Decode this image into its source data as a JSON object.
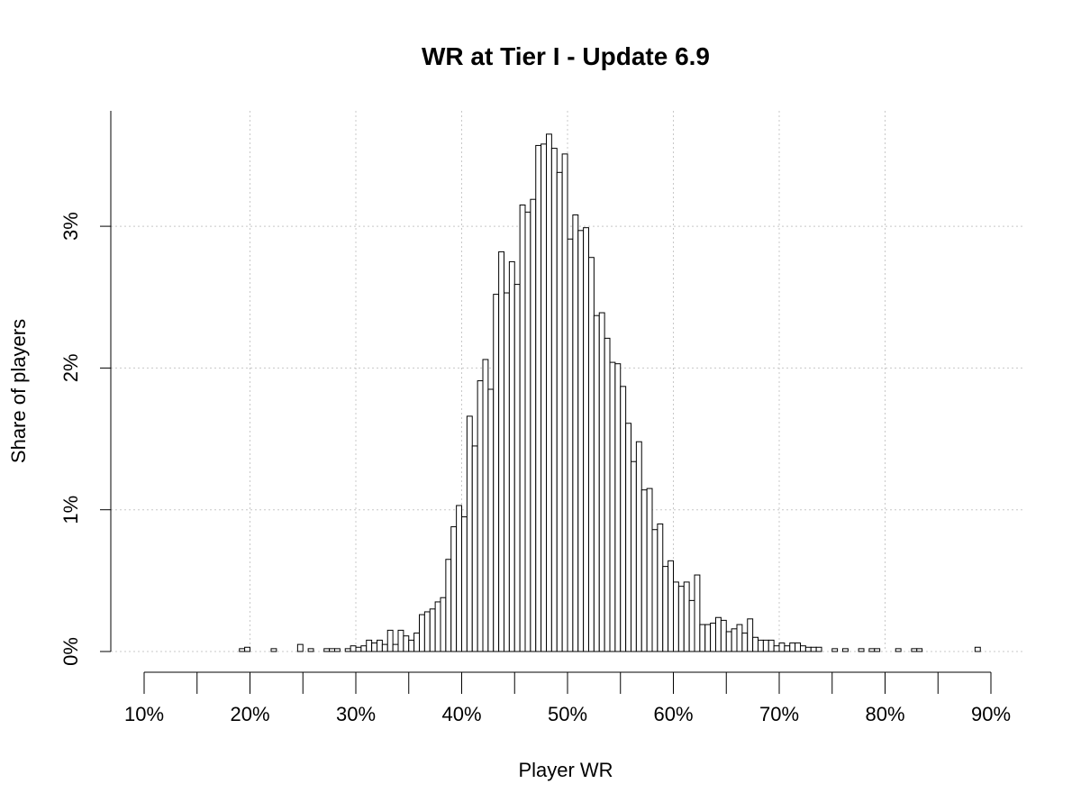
{
  "chart_data": {
    "type": "bar",
    "title": "WR at Tier I - Update 6.9",
    "xlabel": "Player WR",
    "ylabel": "Share of players",
    "xlim": [
      10,
      90
    ],
    "ylim": [
      0,
      3.8
    ],
    "x_ticks": [
      10,
      20,
      30,
      40,
      50,
      60,
      70,
      80,
      90
    ],
    "x_tick_labels": [
      "10%",
      "20%",
      "30%",
      "40%",
      "50%",
      "60%",
      "70%",
      "80%",
      "90%"
    ],
    "y_ticks": [
      0,
      1,
      2,
      3
    ],
    "y_tick_labels": [
      "0%",
      "1%",
      "2%",
      "3%"
    ],
    "grid": true,
    "bin_width": 0.5,
    "bins": [
      [
        19,
        0.02
      ],
      [
        19.5,
        0.03
      ],
      [
        22,
        0.02
      ],
      [
        24.5,
        0.05
      ],
      [
        25.5,
        0.02
      ],
      [
        27,
        0.02
      ],
      [
        27.5,
        0.02
      ],
      [
        28,
        0.02
      ],
      [
        29,
        0.02
      ],
      [
        29.5,
        0.04
      ],
      [
        30,
        0.03
      ],
      [
        30.5,
        0.04
      ],
      [
        31,
        0.08
      ],
      [
        31.5,
        0.06
      ],
      [
        32,
        0.08
      ],
      [
        32.5,
        0.05
      ],
      [
        33,
        0.15
      ],
      [
        33.5,
        0.05
      ],
      [
        34,
        0.15
      ],
      [
        34.5,
        0.11
      ],
      [
        35,
        0.08
      ],
      [
        35.5,
        0.13
      ],
      [
        36,
        0.26
      ],
      [
        36.5,
        0.28
      ],
      [
        37,
        0.3
      ],
      [
        37.5,
        0.35
      ],
      [
        38,
        0.38
      ],
      [
        38.5,
        0.65
      ],
      [
        39,
        0.88
      ],
      [
        39.5,
        1.03
      ],
      [
        40,
        0.95
      ],
      [
        40.5,
        1.66
      ],
      [
        41,
        1.45
      ],
      [
        41.5,
        1.91
      ],
      [
        42,
        2.06
      ],
      [
        42.5,
        1.85
      ],
      [
        43,
        2.52
      ],
      [
        43.5,
        2.82
      ],
      [
        44,
        2.53
      ],
      [
        44.5,
        2.75
      ],
      [
        45,
        2.59
      ],
      [
        45.5,
        3.15
      ],
      [
        46,
        3.1
      ],
      [
        46.5,
        3.19
      ],
      [
        47,
        3.57
      ],
      [
        47.5,
        3.58
      ],
      [
        48,
        3.65
      ],
      [
        48.5,
        3.55
      ],
      [
        49,
        3.38
      ],
      [
        49.5,
        3.51
      ],
      [
        50,
        2.91
      ],
      [
        50.5,
        3.08
      ],
      [
        51,
        2.97
      ],
      [
        51.5,
        2.99
      ],
      [
        52,
        2.78
      ],
      [
        52.5,
        2.37
      ],
      [
        53,
        2.39
      ],
      [
        53.5,
        2.21
      ],
      [
        54,
        2.04
      ],
      [
        54.5,
        2.03
      ],
      [
        55,
        1.87
      ],
      [
        55.5,
        1.61
      ],
      [
        56,
        1.34
      ],
      [
        56.5,
        1.48
      ],
      [
        57,
        1.14
      ],
      [
        57.5,
        1.15
      ],
      [
        58,
        0.86
      ],
      [
        58.5,
        0.9
      ],
      [
        59,
        0.6
      ],
      [
        59.5,
        0.64
      ],
      [
        60,
        0.49
      ],
      [
        60.5,
        0.46
      ],
      [
        61,
        0.49
      ],
      [
        61.5,
        0.36
      ],
      [
        62,
        0.54
      ],
      [
        62.5,
        0.19
      ],
      [
        63,
        0.19
      ],
      [
        63.5,
        0.2
      ],
      [
        64,
        0.24
      ],
      [
        64.5,
        0.22
      ],
      [
        65,
        0.14
      ],
      [
        65.5,
        0.16
      ],
      [
        66,
        0.19
      ],
      [
        66.5,
        0.13
      ],
      [
        67,
        0.23
      ],
      [
        67.5,
        0.1
      ],
      [
        68,
        0.08
      ],
      [
        68.5,
        0.08
      ],
      [
        69,
        0.08
      ],
      [
        69.5,
        0.04
      ],
      [
        70,
        0.06
      ],
      [
        70.5,
        0.04
      ],
      [
        71,
        0.06
      ],
      [
        71.5,
        0.06
      ],
      [
        72,
        0.04
      ],
      [
        72.5,
        0.03
      ],
      [
        73,
        0.03
      ],
      [
        73.5,
        0.03
      ],
      [
        75,
        0.02
      ],
      [
        76,
        0.02
      ],
      [
        77.5,
        0.02
      ],
      [
        78.5,
        0.02
      ],
      [
        79,
        0.02
      ],
      [
        81,
        0.02
      ],
      [
        82.5,
        0.02
      ],
      [
        83,
        0.02
      ],
      [
        88.5,
        0.03
      ]
    ]
  }
}
